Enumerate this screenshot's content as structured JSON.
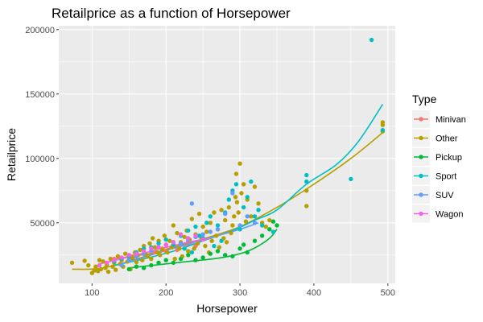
{
  "chart_data": {
    "type": "scatter",
    "title": "Retailprice as a function of Horsepower",
    "xlabel": "Horsepower",
    "ylabel": "Retailprice",
    "xlim": [
      55,
      510
    ],
    "ylim": [
      3000,
      203000
    ],
    "x_ticks": [
      100,
      200,
      300,
      400,
      500
    ],
    "x_tick_labels": [
      "100",
      "200",
      "300",
      "400",
      "500"
    ],
    "y_ticks": [
      50000,
      100000,
      150000,
      200000
    ],
    "y_tick_labels": [
      "50000",
      "100000",
      "150000",
      "200000"
    ],
    "grid": true,
    "legend": {
      "title": "Type",
      "placement": "right"
    },
    "series": [
      {
        "name": "Minivan",
        "color": "#F8766D",
        "points": [
          [
            130,
            22000
          ],
          [
            155,
            24000
          ],
          [
            170,
            26000
          ],
          [
            185,
            27000
          ],
          [
            195,
            30000
          ],
          [
            200,
            28000
          ],
          [
            210,
            33000
          ],
          [
            215,
            29000
          ],
          [
            230,
            36000
          ],
          [
            240,
            32000
          ]
        ],
        "smooth": [
          [
            130,
            22000
          ],
          [
            160,
            24500
          ],
          [
            190,
            27500
          ],
          [
            215,
            31000
          ],
          [
            240,
            34000
          ]
        ]
      },
      {
        "name": "Other",
        "color": "#B79F00",
        "points": [
          [
            73,
            19000
          ],
          [
            90,
            20500
          ],
          [
            95,
            17000
          ],
          [
            100,
            11000
          ],
          [
            103,
            13000
          ],
          [
            105,
            16000
          ],
          [
            108,
            12500
          ],
          [
            110,
            21000
          ],
          [
            112,
            14000
          ],
          [
            115,
            20000
          ],
          [
            118,
            15000
          ],
          [
            120,
            17500
          ],
          [
            122,
            12000
          ],
          [
            125,
            22000
          ],
          [
            128,
            16000
          ],
          [
            130,
            19000
          ],
          [
            132,
            13500
          ],
          [
            135,
            24000
          ],
          [
            138,
            18000
          ],
          [
            140,
            21000
          ],
          [
            142,
            16000
          ],
          [
            145,
            26000
          ],
          [
            148,
            20000
          ],
          [
            150,
            23000
          ],
          [
            152,
            14000
          ],
          [
            155,
            22500
          ],
          [
            158,
            27000
          ],
          [
            160,
            19500
          ],
          [
            162,
            25000
          ],
          [
            165,
            29000
          ],
          [
            168,
            21000
          ],
          [
            170,
            32000
          ],
          [
            172,
            26000
          ],
          [
            175,
            24000
          ],
          [
            178,
            34000
          ],
          [
            180,
            22000
          ],
          [
            182,
            38000
          ],
          [
            185,
            31000
          ],
          [
            188,
            27000
          ],
          [
            190,
            36000
          ],
          [
            192,
            25000
          ],
          [
            195,
            29000
          ],
          [
            198,
            40000
          ],
          [
            200,
            33000
          ],
          [
            202,
            27000
          ],
          [
            205,
            36000
          ],
          [
            208,
            31000
          ],
          [
            210,
            48000
          ],
          [
            212,
            22000
          ],
          [
            215,
            42000
          ],
          [
            218,
            30000
          ],
          [
            220,
            35000
          ],
          [
            222,
            24000
          ],
          [
            225,
            39000
          ],
          [
            228,
            44000
          ],
          [
            230,
            28000
          ],
          [
            232,
            37000
          ],
          [
            235,
            53000
          ],
          [
            238,
            30000
          ],
          [
            240,
            41000
          ],
          [
            243,
            34000
          ],
          [
            245,
            57000
          ],
          [
            248,
            38000
          ],
          [
            250,
            47000
          ],
          [
            253,
            32000
          ],
          [
            255,
            43000
          ],
          [
            258,
            27000
          ],
          [
            260,
            50000
          ],
          [
            262,
            36000
          ],
          [
            265,
            58000
          ],
          [
            268,
            40000
          ],
          [
            270,
            45000
          ],
          [
            272,
            31000
          ],
          [
            275,
            60000
          ],
          [
            278,
            38000
          ],
          [
            280,
            52000
          ],
          [
            282,
            35000
          ],
          [
            285,
            62000
          ],
          [
            288,
            42000
          ],
          [
            290,
            48000
          ],
          [
            292,
            55000
          ],
          [
            294,
            70000
          ],
          [
            295,
            88000
          ],
          [
            296,
            66000
          ],
          [
            298,
            58000
          ],
          [
            300,
            96000
          ],
          [
            302,
            73000
          ],
          [
            305,
            80000
          ],
          [
            308,
            51000
          ],
          [
            310,
            68000
          ],
          [
            315,
            55000
          ],
          [
            320,
            78000
          ],
          [
            325,
            65000
          ],
          [
            330,
            50000
          ],
          [
            335,
            47000
          ],
          [
            340,
            52000
          ],
          [
            390,
            63000
          ],
          [
            390,
            75000
          ],
          [
            493,
            128000
          ],
          [
            493,
            126000
          ],
          [
            493,
            121000
          ]
        ],
        "smooth": [
          [
            73,
            14000
          ],
          [
            110,
            14500
          ],
          [
            150,
            20000
          ],
          [
            200,
            29500
          ],
          [
            250,
            37500
          ],
          [
            300,
            47000
          ],
          [
            350,
            62000
          ],
          [
            400,
            80000
          ],
          [
            450,
            100000
          ],
          [
            493,
            120000
          ]
        ]
      },
      {
        "name": "Pickup",
        "color": "#00BA38",
        "points": [
          [
            150,
            14000
          ],
          [
            160,
            16000
          ],
          [
            170,
            15000
          ],
          [
            180,
            17000
          ],
          [
            190,
            19000
          ],
          [
            200,
            21000
          ],
          [
            210,
            19000
          ],
          [
            220,
            22000
          ],
          [
            230,
            25000
          ],
          [
            240,
            21000
          ],
          [
            250,
            23000
          ],
          [
            260,
            26000
          ],
          [
            270,
            28000
          ],
          [
            280,
            25000
          ],
          [
            290,
            24000
          ],
          [
            300,
            30000
          ],
          [
            305,
            33000
          ],
          [
            310,
            27000
          ],
          [
            320,
            36000
          ],
          [
            330,
            40000
          ],
          [
            340,
            45000
          ],
          [
            345,
            51000
          ],
          [
            350,
            48000
          ]
        ],
        "smooth": [
          [
            150,
            15000
          ],
          [
            190,
            17500
          ],
          [
            230,
            20000
          ],
          [
            270,
            22500
          ],
          [
            300,
            26000
          ],
          [
            320,
            30500
          ],
          [
            340,
            38000
          ],
          [
            350,
            45000
          ]
        ]
      },
      {
        "name": "Sport",
        "color": "#00BFC4",
        "points": [
          [
            130,
            20000
          ],
          [
            140,
            22000
          ],
          [
            150,
            24000
          ],
          [
            160,
            27000
          ],
          [
            170,
            30000
          ],
          [
            180,
            31000
          ],
          [
            190,
            34000
          ],
          [
            200,
            37000
          ],
          [
            210,
            33000
          ],
          [
            220,
            40000
          ],
          [
            225,
            30000
          ],
          [
            230,
            44000
          ],
          [
            235,
            27000
          ],
          [
            240,
            47000
          ],
          [
            245,
            40000
          ],
          [
            250,
            38000
          ],
          [
            255,
            50000
          ],
          [
            260,
            55000
          ],
          [
            265,
            32000
          ],
          [
            270,
            48000
          ],
          [
            275,
            36000
          ],
          [
            280,
            58000
          ],
          [
            285,
            68000
          ],
          [
            290,
            75000
          ],
          [
            295,
            80000
          ],
          [
            300,
            45000
          ],
          [
            305,
            62000
          ],
          [
            310,
            70000
          ],
          [
            315,
            82000
          ],
          [
            320,
            55000
          ],
          [
            325,
            60000
          ],
          [
            330,
            48000
          ],
          [
            345,
            43000
          ],
          [
            390,
            87000
          ],
          [
            390,
            82000
          ],
          [
            450,
            84000
          ],
          [
            478,
            192000
          ],
          [
            493,
            122000
          ]
        ],
        "smooth": [
          [
            130,
            17000
          ],
          [
            170,
            22000
          ],
          [
            210,
            28000
          ],
          [
            250,
            36000
          ],
          [
            290,
            44000
          ],
          [
            320,
            52000
          ],
          [
            350,
            60000
          ],
          [
            390,
            80000
          ],
          [
            430,
            95000
          ],
          [
            460,
            113000
          ],
          [
            493,
            142000
          ]
        ]
      },
      {
        "name": "SUV",
        "color": "#619CFF",
        "points": [
          [
            140,
            17000
          ],
          [
            150,
            21000
          ],
          [
            160,
            24000
          ],
          [
            170,
            26000
          ],
          [
            180,
            28000
          ],
          [
            190,
            31000
          ],
          [
            200,
            33000
          ],
          [
            210,
            35000
          ],
          [
            220,
            34000
          ],
          [
            230,
            37000
          ],
          [
            235,
            65000
          ],
          [
            240,
            39000
          ],
          [
            250,
            41000
          ],
          [
            260,
            43000
          ],
          [
            270,
            45000
          ],
          [
            280,
            57000
          ],
          [
            290,
            73000
          ],
          [
            300,
            48000
          ],
          [
            310,
            55000
          ],
          [
            320,
            50000
          ]
        ],
        "smooth": [
          [
            140,
            18000
          ],
          [
            180,
            25000
          ],
          [
            220,
            32000
          ],
          [
            260,
            38500
          ],
          [
            300,
            45000
          ],
          [
            325,
            50000
          ]
        ]
      },
      {
        "name": "Wagon",
        "color": "#F564E3",
        "points": [
          [
            110,
            17000
          ],
          [
            120,
            19000
          ],
          [
            130,
            21000
          ],
          [
            140,
            23000
          ],
          [
            150,
            25000
          ],
          [
            160,
            26000
          ],
          [
            170,
            28000
          ],
          [
            180,
            30000
          ],
          [
            190,
            31000
          ],
          [
            200,
            33000
          ],
          [
            210,
            35000
          ],
          [
            220,
            41000
          ],
          [
            230,
            38000
          ],
          [
            240,
            40000
          ],
          [
            250,
            37000
          ]
        ],
        "smooth": [
          [
            110,
            18000
          ],
          [
            150,
            23500
          ],
          [
            190,
            29500
          ],
          [
            230,
            35000
          ],
          [
            260,
            38000
          ]
        ]
      }
    ]
  }
}
